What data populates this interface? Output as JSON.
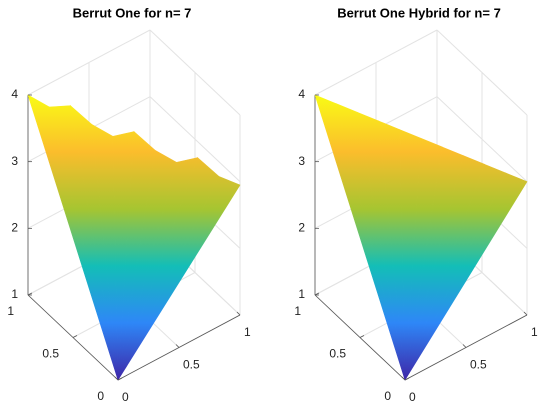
{
  "chart_data": [
    {
      "type": "surface",
      "title": "Berrut One for n= 7",
      "origin_z": 1,
      "edge_x": [
        0,
        0.1,
        0.2,
        0.3,
        0.4,
        0.5,
        0.6,
        0.7,
        0.8,
        0.9,
        1
      ],
      "edge_z": [
        4.0,
        3.85,
        3.9,
        3.65,
        3.5,
        3.6,
        3.35,
        3.2,
        3.3,
        3.05,
        2.95
      ],
      "xlim": [
        0,
        1
      ],
      "ylim": [
        0,
        1
      ],
      "zlim": [
        1,
        4
      ],
      "xticks": [
        0,
        0.5,
        1
      ],
      "yticks": [
        0,
        0.5,
        1
      ],
      "zticks": [
        1,
        2,
        3,
        4
      ],
      "grid": true,
      "colormap": [
        "#3e26a8",
        "#2e87f7",
        "#13beb7",
        "#a6c531",
        "#fbbd2c",
        "#f9fb15"
      ]
    },
    {
      "type": "surface",
      "title": "Berrut One Hybrid for n= 7",
      "origin_z": 1,
      "edge_x": [
        0,
        0.1,
        0.2,
        0.3,
        0.4,
        0.5,
        0.6,
        0.7,
        0.8,
        0.9,
        1
      ],
      "edge_z": [
        4.0,
        3.9,
        3.8,
        3.7,
        3.6,
        3.5,
        3.4,
        3.3,
        3.2,
        3.1,
        3.0
      ],
      "xlim": [
        0,
        1
      ],
      "ylim": [
        0,
        1
      ],
      "zlim": [
        1,
        4
      ],
      "xticks": [
        0,
        0.5,
        1
      ],
      "yticks": [
        0,
        0.5,
        1
      ],
      "zticks": [
        1,
        2,
        3,
        4
      ],
      "grid": true,
      "colormap": [
        "#3e26a8",
        "#2e87f7",
        "#13beb7",
        "#a6c531",
        "#fbbd2c",
        "#f9fb15"
      ]
    }
  ]
}
